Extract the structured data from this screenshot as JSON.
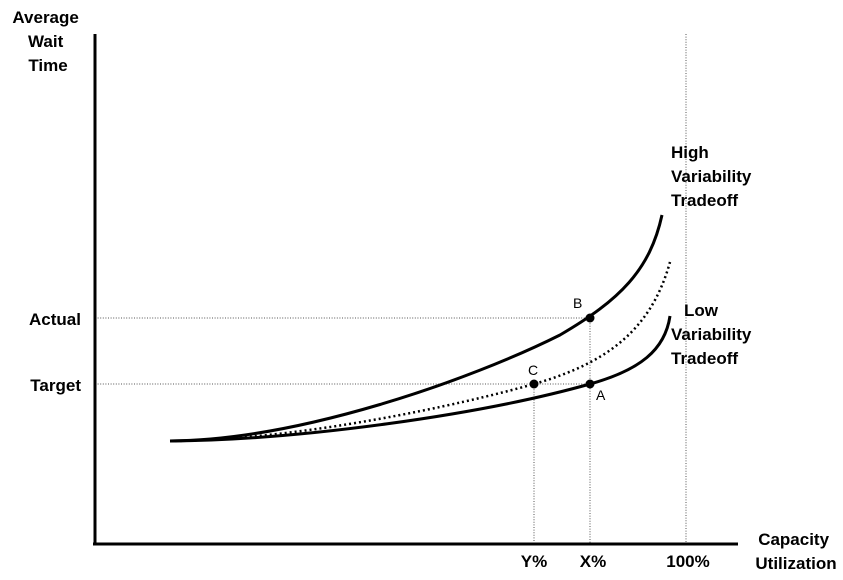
{
  "axes": {
    "y_label_lines": [
      "Average",
      "Wait",
      "Time"
    ],
    "x_label_lines": [
      "Capacity",
      "Utilization"
    ]
  },
  "y_ticks": {
    "actual": "Actual",
    "target": "Target"
  },
  "x_ticks": {
    "y_pct": "Y%",
    "x_pct": "X%",
    "hundred_pct": "100%"
  },
  "curves": {
    "high_label_lines": [
      "High",
      "Variability",
      "Tradeoff"
    ],
    "low_label_lines": [
      "Low",
      "Variability",
      "Tradeoff"
    ]
  },
  "points": {
    "a": "A",
    "b": "B",
    "c": "C"
  },
  "colors": {
    "ink": "#000000",
    "guide": "#555555",
    "background": "#ffffff"
  }
}
